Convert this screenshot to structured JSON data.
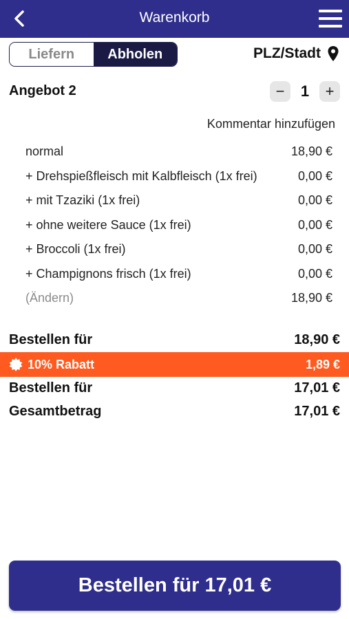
{
  "header": {
    "title": "Warenkorb",
    "back_icon": "chevron-left-icon",
    "menu_icon": "hamburger-menu-icon",
    "background": "#2f2e8c"
  },
  "toggle": {
    "options": [
      "Liefern",
      "Abholen"
    ],
    "selected": "Abholen"
  },
  "location": {
    "label": "PLZ/Stadt",
    "icon": "map-pin-icon"
  },
  "item": {
    "name": "Angebot 2",
    "quantity": "1",
    "decrement": "−",
    "increment": "+",
    "comment_link": "Kommentar hinzufügen",
    "lines": [
      {
        "label": "normal",
        "price": "18,90 €"
      },
      {
        "label": "+ Drehspießfleisch mit Kalbfleisch (1x frei)",
        "price": "0,00 €"
      },
      {
        "label": "+ mit Tzaziki (1x frei)",
        "price": "0,00 €"
      },
      {
        "label": "+ ohne weitere Sauce (1x frei)",
        "price": "0,00 €"
      },
      {
        "label": "+ Broccoli (1x frei)",
        "price": "0,00 €"
      },
      {
        "label": "+ Champignons frisch (1x frei)",
        "price": "0,00 €"
      },
      {
        "label": "(Ändern)",
        "price": "18,90 €"
      }
    ]
  },
  "totals": {
    "subtotal_label": "Bestellen für",
    "subtotal_value": "18,90 €",
    "discount_label": "10% Rabatt",
    "discount_value": "1,89 €",
    "discount_color": "#ff5a1f",
    "after_discount_label": "Bestellen für",
    "after_discount_value": "17,01 €",
    "grand_total_label": "Gesamtbetrag",
    "grand_total_value": "17,01 €"
  },
  "cta": {
    "label": "Bestellen für 17,01 €"
  }
}
